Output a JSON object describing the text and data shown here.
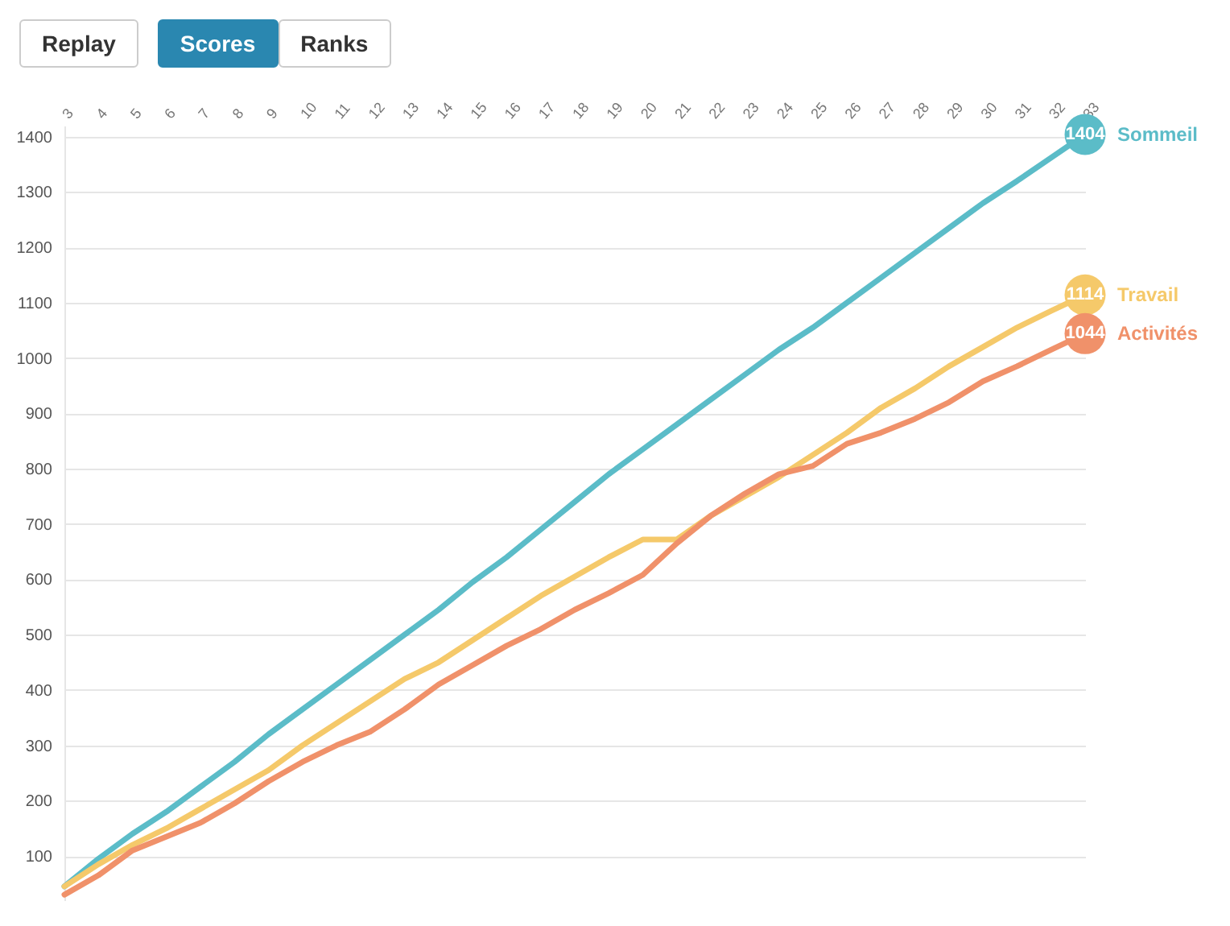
{
  "chart_data": {
    "type": "line",
    "annotations": [
      "Replay",
      "Scores",
      "Ranks"
    ],
    "x": [
      3,
      4,
      5,
      6,
      7,
      8,
      9,
      10,
      11,
      12,
      13,
      14,
      15,
      16,
      17,
      18,
      19,
      20,
      21,
      22,
      23,
      24,
      25,
      26,
      27,
      28,
      29,
      30,
      31,
      32,
      33
    ],
    "series": [
      {
        "name": "Sommeil",
        "color": "#5bbcc8",
        "values": [
          45,
          95,
          140,
          180,
          225,
          270,
          320,
          365,
          410,
          455,
          500,
          545,
          595,
          640,
          690,
          740,
          790,
          835,
          880,
          925,
          970,
          1015,
          1055,
          1100,
          1145,
          1190,
          1235,
          1280,
          1320,
          1362,
          1404
        ],
        "value_labels": [
          null,
          null,
          null,
          null,
          null,
          null,
          null,
          null,
          null,
          null,
          null,
          null,
          null,
          null,
          null,
          null,
          null,
          null,
          null,
          null,
          null,
          null,
          null,
          null,
          null,
          null,
          null,
          null,
          null,
          null,
          "1404"
        ]
      },
      {
        "name": "Travail",
        "color": "#f5c96a",
        "values": [
          45,
          85,
          120,
          150,
          185,
          220,
          255,
          300,
          340,
          380,
          420,
          450,
          490,
          530,
          570,
          605,
          640,
          672,
          672,
          715,
          750,
          785,
          825,
          865,
          910,
          945,
          985,
          1020,
          1055,
          1085,
          1114
        ],
        "value_labels": [
          null,
          null,
          null,
          null,
          null,
          null,
          null,
          null,
          null,
          null,
          null,
          null,
          null,
          null,
          null,
          null,
          null,
          null,
          null,
          null,
          null,
          null,
          null,
          null,
          null,
          null,
          null,
          null,
          null,
          null,
          "1114"
        ]
      },
      {
        "name": "Activités",
        "color": "#f0916a",
        "values": [
          30,
          65,
          110,
          135,
          160,
          195,
          235,
          270,
          300,
          325,
          365,
          410,
          445,
          480,
          510,
          545,
          575,
          608,
          665,
          715,
          755,
          790,
          805,
          845,
          865,
          890,
          920,
          958,
          985,
          1015,
          1044
        ],
        "value_labels": [
          null,
          null,
          null,
          null,
          null,
          null,
          null,
          null,
          null,
          null,
          null,
          null,
          null,
          null,
          null,
          null,
          null,
          null,
          null,
          null,
          null,
          null,
          null,
          null,
          null,
          null,
          null,
          null,
          null,
          null,
          "1044"
        ]
      }
    ],
    "xlim": [
      3,
      33
    ],
    "xticks": [
      3,
      4,
      5,
      6,
      7,
      8,
      9,
      10,
      11,
      12,
      13,
      14,
      15,
      16,
      17,
      18,
      19,
      20,
      21,
      22,
      23,
      24,
      25,
      26,
      27,
      28,
      29,
      30,
      31,
      32,
      33
    ],
    "ylim": [
      20,
      1420
    ],
    "yticks": [
      100,
      200,
      300,
      400,
      500,
      600,
      700,
      800,
      900,
      1000,
      1100,
      1200,
      1300,
      1400
    ],
    "grid": "y",
    "legend": false,
    "marker": "none",
    "line_style": "solid"
  }
}
